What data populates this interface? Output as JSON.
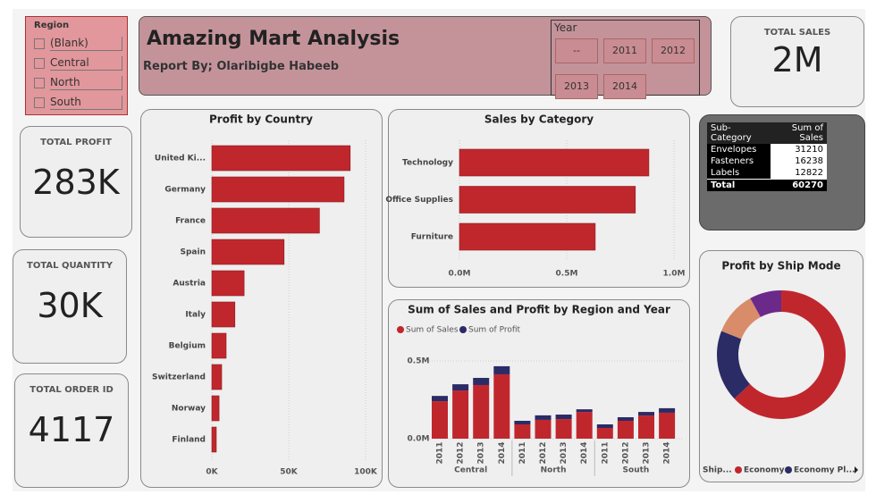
{
  "slicer": {
    "title": "Region",
    "items": [
      "(Blank)",
      "Central",
      "North",
      "South"
    ]
  },
  "header": {
    "title": "Amazing Mart Analysis",
    "subtitle": "Report By; Olaribigbe Habeeb"
  },
  "year_slicer": {
    "title": "Year",
    "items": [
      "--",
      "2011",
      "2012",
      "2013",
      "2014"
    ]
  },
  "cards": [
    {
      "label": "TOTAL SALES",
      "value": "2M"
    },
    {
      "label": "TOTAL PROFIT",
      "value": "283K"
    },
    {
      "label": "TOTAL QUANTITY",
      "value": "30K"
    },
    {
      "label": "TOTAL ORDER ID",
      "value": "4117"
    }
  ],
  "table": {
    "columns": [
      "Sub-Category",
      "Sum of Sales"
    ],
    "rows": [
      [
        "Envelopes",
        "31210"
      ],
      [
        "Fasteners",
        "16238"
      ],
      [
        "Labels",
        "12822"
      ]
    ],
    "total": [
      "Total",
      "60270"
    ]
  },
  "chart_data": [
    {
      "type": "hbar",
      "title": "Profit by Country",
      "categories": [
        "United Ki...",
        "Germany",
        "France",
        "Spain",
        "Austria",
        "Italy",
        "Belgium",
        "Switzerland",
        "Norway",
        "Finland"
      ],
      "values": [
        90000,
        86000,
        70000,
        47000,
        21000,
        15000,
        9300,
        6400,
        4700,
        2900
      ],
      "color": "#c0272d",
      "xlim": [
        0,
        100000
      ],
      "xticks": [
        {
          "value": 0,
          "label": "0K"
        },
        {
          "value": 50000,
          "label": "50K"
        },
        {
          "value": 100000,
          "label": "100K"
        }
      ],
      "grid": true
    },
    {
      "type": "hbar",
      "title": "Sales by Category",
      "categories": [
        "Technology",
        "Office Supplies",
        "Furniture"
      ],
      "values": [
        883000,
        820000,
        633000
      ],
      "color": "#c0272d",
      "xlim": [
        0,
        1000000
      ],
      "xticks": [
        {
          "value": 0,
          "label": "0.0M"
        },
        {
          "value": 500000,
          "label": "0.5M"
        },
        {
          "value": 1000000,
          "label": "1.0M"
        }
      ],
      "grid": true
    },
    {
      "type": "stacked_bar",
      "title": "Sum of Sales and Profit by Region and Year",
      "groups": [
        "Central",
        "North",
        "South"
      ],
      "categories": [
        "2011",
        "2012",
        "2013",
        "2014",
        "2011",
        "2012",
        "2013",
        "2014",
        "2011",
        "2012",
        "2013",
        "2014"
      ],
      "series": [
        {
          "name": "Sum of Sales",
          "color": "#c0272d",
          "values": [
            241000,
            310000,
            345000,
            414000,
            92000,
            121000,
            126000,
            172000,
            69000,
            115000,
            149000,
            167000
          ]
        },
        {
          "name": "Sum of Profit",
          "color": "#2b2b66",
          "values": [
            34000,
            40000,
            46000,
            52000,
            23000,
            29000,
            29000,
            17000,
            23000,
            23000,
            23000,
            29000
          ]
        }
      ],
      "ylim": [
        0,
        550000
      ],
      "yticks": [
        {
          "value": 0,
          "label": "0.0M"
        },
        {
          "value": 500000,
          "label": "0.5M"
        }
      ],
      "grid": true
    },
    {
      "type": "donut",
      "title": "Profit by Ship Mode",
      "legend_title": "Ship...",
      "categories": [
        "Economy",
        "Economy Pl...",
        null,
        null
      ],
      "values": [
        63,
        18,
        11,
        8
      ],
      "colors": [
        "#c0272d",
        "#2b2b66",
        "#d98c6a",
        "#6b2a8a"
      ]
    }
  ]
}
